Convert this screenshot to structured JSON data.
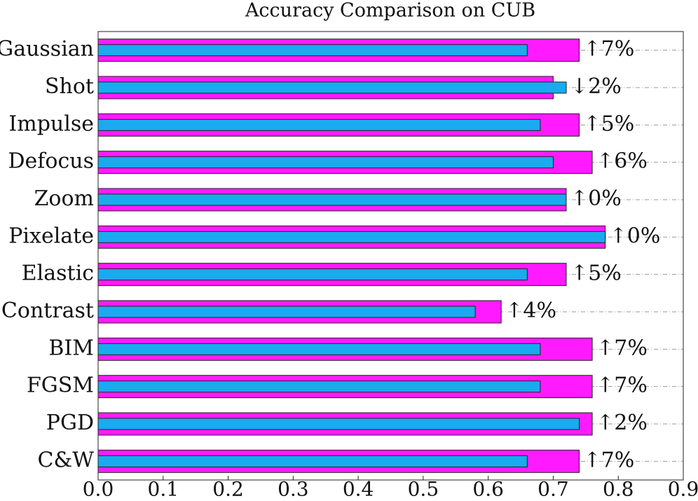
{
  "chart_data": {
    "type": "bar",
    "orientation": "horizontal",
    "title": "Accuracy Comparison on CUB",
    "categories": [
      "Gaussian",
      "Shot",
      "Impulse",
      "Defocus",
      "Zoom",
      "Pixelate",
      "Elastic",
      "Contrast",
      "BIM",
      "FGSM",
      "PGD",
      "C&W"
    ],
    "series": [
      {
        "color": "#ff1aff",
        "values": [
          0.74,
          0.7,
          0.74,
          0.76,
          0.72,
          0.78,
          0.72,
          0.62,
          0.76,
          0.76,
          0.76,
          0.74
        ]
      },
      {
        "color": "#1aaaf0",
        "values": [
          0.66,
          0.72,
          0.68,
          0.7,
          0.72,
          0.78,
          0.66,
          0.58,
          0.68,
          0.68,
          0.74,
          0.66
        ]
      }
    ],
    "annotations": [
      "↑7%",
      "↓2%",
      "↑5%",
      "↑6%",
      "↑0%",
      "↑0%",
      "↑5%",
      "↑4%",
      "↑7%",
      "↑7%",
      "↑2%",
      "↑7%"
    ],
    "xlim": [
      0,
      0.9
    ],
    "xticks": [
      {
        "value": 0,
        "label": "0.0"
      },
      0.1,
      0.2,
      0.3,
      0.4,
      0.5,
      0.6,
      0.7,
      0.8,
      0.9
    ],
    "grid": true
  }
}
